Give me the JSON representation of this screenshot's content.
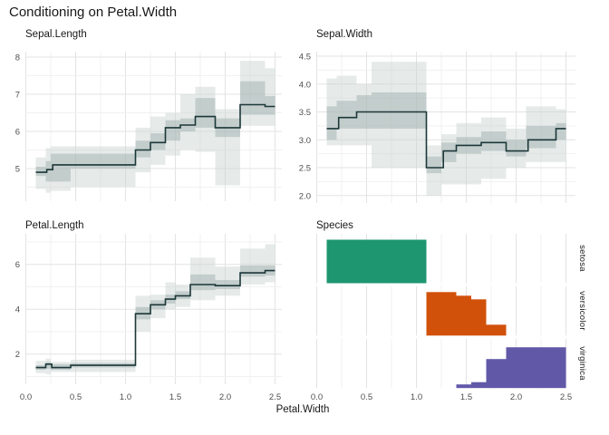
{
  "title": "Conditioning on Petal.Width",
  "x_axis": {
    "label": "Petal.Width",
    "tick_labels": [
      "0.0",
      "0.5",
      "1.0",
      "1.5",
      "2.0",
      "2.5"
    ],
    "tick_values": [
      0,
      0.5,
      1.0,
      1.5,
      2.0,
      2.5
    ],
    "xlim": [
      0,
      2.57
    ]
  },
  "style": {
    "background": "#ffffff",
    "line_color": "#1c3738",
    "band_outer": "#c8d2d1",
    "band_inner": "#9fafae",
    "grid_major": "#e3e3e3",
    "grid_minor": "#f1f1f1",
    "text_dark": "#191919",
    "text_gray": "#4d4d4d"
  },
  "chart_data": [
    {
      "type": "line",
      "subtype": "step-with-quantile-bands",
      "title": "Sepal.Length",
      "ylim": [
        4.1,
        8.2
      ],
      "ytick_labels": [
        "5",
        "6",
        "7",
        "8"
      ],
      "ytick_values": [
        5,
        6,
        7,
        8
      ],
      "x_end": 2.5,
      "steps": [
        [
          0.1,
          4.9
        ],
        [
          0.21,
          4.97
        ],
        [
          0.27,
          5.1
        ],
        [
          1.1,
          5.5
        ],
        [
          1.25,
          5.7
        ],
        [
          1.4,
          6.1
        ],
        [
          1.55,
          6.17
        ],
        [
          1.7,
          6.4
        ],
        [
          1.9,
          6.1
        ],
        [
          2.15,
          6.72
        ],
        [
          2.4,
          6.67
        ]
      ],
      "bands": [
        {
          "x0": 0.1,
          "x1": 0.2,
          "outer": [
            4.45,
            5.3
          ],
          "inner": [
            4.8,
            5.05
          ]
        },
        {
          "x0": 0.2,
          "x1": 0.25,
          "outer": [
            4.35,
            5.55
          ],
          "inner": [
            4.65,
            5.2
          ]
        },
        {
          "x0": 0.25,
          "x1": 0.45,
          "outer": [
            4.4,
            5.6
          ],
          "inner": [
            4.65,
            5.4
          ]
        },
        {
          "x0": 0.45,
          "x1": 1.1,
          "outer": [
            4.5,
            5.6
          ],
          "inner": [
            5.0,
            5.4
          ]
        },
        {
          "x0": 1.1,
          "x1": 1.25,
          "outer": [
            4.9,
            6.1
          ],
          "inner": [
            5.3,
            5.75
          ]
        },
        {
          "x0": 1.25,
          "x1": 1.4,
          "outer": [
            5.1,
            6.4
          ],
          "inner": [
            5.5,
            5.95
          ]
        },
        {
          "x0": 1.4,
          "x1": 1.55,
          "outer": [
            5.35,
            6.5
          ],
          "inner": [
            5.75,
            6.3
          ]
        },
        {
          "x0": 1.55,
          "x1": 1.7,
          "outer": [
            5.5,
            7.0
          ],
          "inner": [
            6.0,
            6.35
          ]
        },
        {
          "x0": 1.7,
          "x1": 1.9,
          "outer": [
            5.45,
            7.2
          ],
          "inner": [
            6.1,
            6.9
          ]
        },
        {
          "x0": 1.9,
          "x1": 2.15,
          "outer": [
            4.55,
            6.6
          ],
          "inner": [
            5.85,
            6.35
          ]
        },
        {
          "x0": 2.15,
          "x1": 2.4,
          "outer": [
            6.15,
            7.9
          ],
          "inner": [
            6.45,
            7.35
          ]
        },
        {
          "x0": 2.4,
          "x1": 2.5,
          "outer": [
            6.15,
            7.7
          ],
          "inner": [
            6.45,
            6.95
          ]
        }
      ]
    },
    {
      "type": "line",
      "subtype": "step-with-quantile-bands",
      "title": "Sepal.Width",
      "ylim": [
        1.9,
        4.6
      ],
      "ytick_labels": [
        "2.0",
        "2.5",
        "3.0",
        "3.5",
        "4.0",
        "4.5"
      ],
      "ytick_values": [
        2.0,
        2.5,
        3.0,
        3.5,
        4.0,
        4.5
      ],
      "x_end": 2.5,
      "steps": [
        [
          0.1,
          3.2
        ],
        [
          0.22,
          3.4
        ],
        [
          0.4,
          3.5
        ],
        [
          1.1,
          2.5
        ],
        [
          1.27,
          2.8
        ],
        [
          1.4,
          2.9
        ],
        [
          1.65,
          2.95
        ],
        [
          1.9,
          2.8
        ],
        [
          2.12,
          3.0
        ],
        [
          2.4,
          3.2
        ]
      ],
      "bands": [
        {
          "x0": 0.1,
          "x1": 0.2,
          "outer": [
            2.9,
            4.1
          ],
          "inner": [
            3.0,
            3.6
          ]
        },
        {
          "x0": 0.2,
          "x1": 0.4,
          "outer": [
            2.9,
            4.15
          ],
          "inner": [
            3.2,
            3.7
          ]
        },
        {
          "x0": 0.4,
          "x1": 0.55,
          "outer": [
            2.9,
            4.0
          ],
          "inner": [
            3.2,
            3.8
          ]
        },
        {
          "x0": 0.55,
          "x1": 1.1,
          "outer": [
            2.5,
            4.4
          ],
          "inner": [
            3.2,
            3.85
          ]
        },
        {
          "x0": 1.1,
          "x1": 1.25,
          "outer": [
            2.0,
            2.9
          ],
          "inner": [
            2.4,
            2.7
          ]
        },
        {
          "x0": 1.25,
          "x1": 1.4,
          "outer": [
            2.2,
            3.1
          ],
          "inner": [
            2.6,
            2.95
          ]
        },
        {
          "x0": 1.4,
          "x1": 1.65,
          "outer": [
            2.2,
            3.3
          ],
          "inner": [
            2.75,
            3.05
          ]
        },
        {
          "x0": 1.65,
          "x1": 1.9,
          "outer": [
            2.3,
            3.4
          ],
          "inner": [
            2.8,
            3.15
          ]
        },
        {
          "x0": 1.9,
          "x1": 2.1,
          "outer": [
            2.5,
            3.2
          ],
          "inner": [
            2.7,
            3.0
          ]
        },
        {
          "x0": 2.1,
          "x1": 2.4,
          "outer": [
            2.6,
            3.6
          ],
          "inner": [
            2.85,
            3.25
          ]
        },
        {
          "x0": 2.4,
          "x1": 2.5,
          "outer": [
            2.6,
            3.55
          ],
          "inner": [
            3.0,
            3.3
          ]
        }
      ]
    },
    {
      "type": "line",
      "subtype": "step-with-quantile-bands",
      "title": "Petal.Length",
      "ylim": [
        0.7,
        7.4
      ],
      "ytick_labels": [
        "2",
        "4",
        "6"
      ],
      "ytick_values": [
        2,
        4,
        6
      ],
      "x_end": 2.5,
      "steps": [
        [
          0.1,
          1.4
        ],
        [
          0.2,
          1.55
        ],
        [
          0.26,
          1.4
        ],
        [
          0.45,
          1.5
        ],
        [
          1.1,
          3.8
        ],
        [
          1.25,
          4.2
        ],
        [
          1.4,
          4.45
        ],
        [
          1.5,
          4.6
        ],
        [
          1.65,
          5.1
        ],
        [
          1.9,
          5.05
        ],
        [
          2.15,
          5.62
        ],
        [
          2.4,
          5.72
        ]
      ],
      "bands": [
        {
          "x0": 0.1,
          "x1": 0.2,
          "outer": [
            1.15,
            1.7
          ],
          "inner": [
            1.3,
            1.5
          ]
        },
        {
          "x0": 0.2,
          "x1": 0.25,
          "outer": [
            1.1,
            1.8
          ],
          "inner": [
            1.35,
            1.65
          ]
        },
        {
          "x0": 0.25,
          "x1": 0.45,
          "outer": [
            1.2,
            1.65
          ],
          "inner": [
            1.3,
            1.55
          ]
        },
        {
          "x0": 0.45,
          "x1": 1.1,
          "outer": [
            1.2,
            1.75
          ],
          "inner": [
            1.4,
            1.6
          ]
        },
        {
          "x0": 1.1,
          "x1": 1.25,
          "outer": [
            3.0,
            4.6
          ],
          "inner": [
            3.55,
            4.1
          ]
        },
        {
          "x0": 1.25,
          "x1": 1.4,
          "outer": [
            3.6,
            4.65
          ],
          "inner": [
            4.0,
            4.4
          ]
        },
        {
          "x0": 1.4,
          "x1": 1.5,
          "outer": [
            4.0,
            5.2
          ],
          "inner": [
            4.25,
            4.65
          ]
        },
        {
          "x0": 1.5,
          "x1": 1.65,
          "outer": [
            4.1,
            5.1
          ],
          "inner": [
            4.45,
            4.8
          ]
        },
        {
          "x0": 1.65,
          "x1": 1.9,
          "outer": [
            4.4,
            6.3
          ],
          "inner": [
            4.85,
            5.55
          ]
        },
        {
          "x0": 1.9,
          "x1": 2.15,
          "outer": [
            4.6,
            5.9
          ],
          "inner": [
            4.9,
            5.3
          ]
        },
        {
          "x0": 2.15,
          "x1": 2.4,
          "outer": [
            5.1,
            6.7
          ],
          "inner": [
            5.45,
            5.95
          ]
        },
        {
          "x0": 2.4,
          "x1": 2.5,
          "outer": [
            5.2,
            6.9
          ],
          "inner": [
            5.5,
            5.95
          ]
        }
      ]
    },
    {
      "type": "bar",
      "subtype": "faceted-histogram",
      "title": "Species",
      "facets": [
        {
          "label": "setosa",
          "color": "#1E9670",
          "bins": [
            {
              "x0": 0.1,
              "x1": 1.1,
              "h": 0.96
            }
          ]
        },
        {
          "label": "versicolor",
          "color": "#D1510B",
          "bins": [
            {
              "x0": 1.1,
              "x1": 1.4,
              "h": 0.96
            },
            {
              "x0": 1.4,
              "x1": 1.55,
              "h": 0.88
            },
            {
              "x0": 1.55,
              "x1": 1.7,
              "h": 0.8
            },
            {
              "x0": 1.7,
              "x1": 1.9,
              "h": 0.24
            }
          ]
        },
        {
          "label": "virginica",
          "color": "#6159A8",
          "bins": [
            {
              "x0": 1.4,
              "x1": 1.55,
              "h": 0.08
            },
            {
              "x0": 1.55,
              "x1": 1.7,
              "h": 0.13
            },
            {
              "x0": 1.7,
              "x1": 1.9,
              "h": 0.64
            },
            {
              "x0": 1.9,
              "x1": 2.5,
              "h": 0.9
            }
          ]
        }
      ]
    }
  ]
}
